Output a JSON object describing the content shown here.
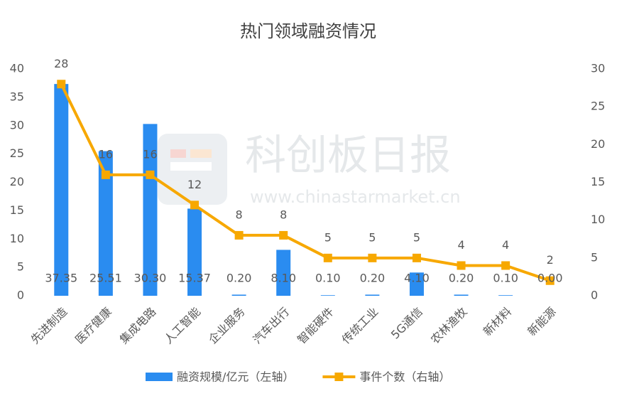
{
  "chart_data": {
    "type": "combo",
    "title": "热门领域融资情况",
    "watermark": {
      "title": "科创板日报",
      "url": "www.chinastarmarket.cn"
    },
    "categories": [
      "先进制造",
      "医疗健康",
      "集成电路",
      "人工智能",
      "企业服务",
      "汽车出行",
      "智能硬件",
      "传统工业",
      "5G通信",
      "农林渔牧",
      "新材料",
      "新能源"
    ],
    "series": [
      {
        "name": "融资规模/亿元（左轴）",
        "type": "bar",
        "color": "#2a8cf0",
        "values": [
          37.35,
          25.51,
          30.3,
          15.37,
          0.2,
          8.1,
          0.1,
          0.2,
          4.1,
          0.2,
          0.1,
          0.0
        ],
        "value_labels": [
          "37.35",
          "25.51",
          "30.30",
          "15.37",
          "0.20",
          "8.10",
          "0.10",
          "0.20",
          "4.10",
          "0.20",
          "0.10",
          "0.00"
        ]
      },
      {
        "name": "事件个数（右轴）",
        "type": "line",
        "axis": "y2",
        "color": "#f7a800",
        "values": [
          28,
          16,
          16,
          12,
          8,
          8,
          5,
          5,
          5,
          4,
          4,
          2
        ]
      }
    ],
    "ylim": [
      0,
      40
    ],
    "yticks": [
      0,
      5,
      10,
      15,
      20,
      25,
      30,
      35,
      40
    ],
    "y2lim": [
      0,
      30
    ],
    "y2ticks": [
      0,
      5,
      10,
      15,
      20,
      25,
      30
    ],
    "legend": "bottom"
  }
}
